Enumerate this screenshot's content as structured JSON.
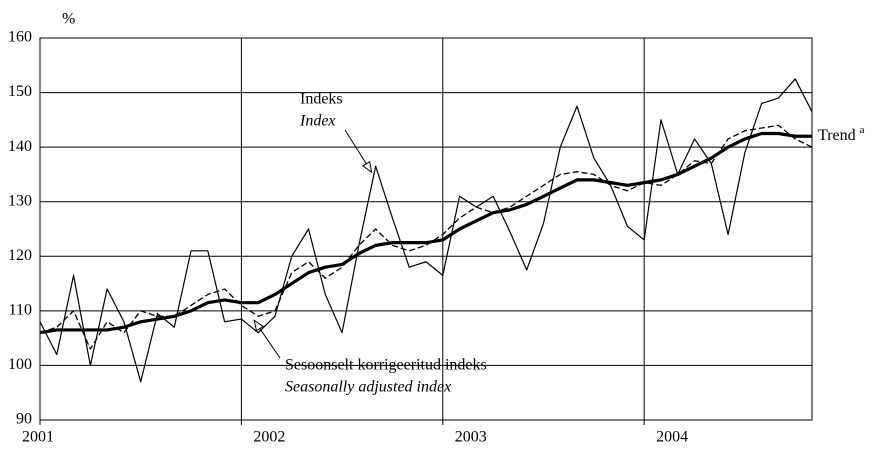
{
  "chart_data": {
    "type": "line",
    "y_unit": "%",
    "categories": [
      "2001",
      null,
      null,
      null,
      null,
      null,
      null,
      null,
      null,
      null,
      null,
      null,
      "2002",
      null,
      null,
      null,
      null,
      null,
      null,
      null,
      null,
      null,
      null,
      null,
      "2003",
      null,
      null,
      null,
      null,
      null,
      null,
      null,
      null,
      null,
      null,
      null,
      "2004",
      null,
      null,
      null,
      null,
      null,
      null,
      null,
      null,
      null,
      null
    ],
    "series": [
      {
        "name": "Indeks",
        "name_en": "Index",
        "color": "#000",
        "style": "thin",
        "values": [
          108,
          102,
          116.5,
          100,
          114,
          108,
          97,
          109.5,
          107,
          121,
          121,
          108,
          108.5,
          106,
          109,
          120,
          125,
          113,
          106,
          122,
          136.5,
          127,
          118,
          119,
          116.5,
          131,
          129,
          131,
          124.5,
          117.5,
          126,
          140,
          147.5,
          138,
          133,
          125.5,
          123,
          145,
          135,
          141.5,
          137,
          124,
          139,
          148,
          149,
          152.5,
          146.5
        ]
      },
      {
        "name": "Sesoonselt korrigeeritud indeks",
        "name_en": "Seasonally adjusted index",
        "color": "#000",
        "style": "dashed",
        "values": [
          106,
          107,
          110,
          103,
          108,
          106,
          110,
          109,
          109,
          111,
          113,
          114,
          111,
          109,
          110,
          117,
          119,
          116,
          118,
          122,
          125,
          122,
          121,
          122,
          124,
          127,
          129,
          128,
          129,
          131,
          133,
          135,
          135.5,
          135,
          133,
          132,
          133.5,
          133,
          135,
          137.5,
          137,
          141.5,
          143,
          143.5,
          144,
          141.5,
          140
        ]
      },
      {
        "name": "Trend",
        "name_note": "a",
        "color": "#000",
        "style": "thick",
        "values": [
          106,
          106.5,
          106.5,
          106.5,
          106.5,
          107,
          108,
          108.5,
          109,
          110,
          111.5,
          112,
          111.5,
          111.5,
          113,
          115,
          117,
          118,
          118.5,
          120.5,
          122,
          122.5,
          122.5,
          122.5,
          123,
          125,
          126.5,
          128,
          128.5,
          129.5,
          131,
          132.5,
          134,
          134,
          133.5,
          133,
          133.5,
          134,
          135,
          136.5,
          138,
          140,
          141.5,
          142.5,
          142.5,
          142,
          142
        ]
      }
    ],
    "ylim": [
      90,
      160
    ],
    "yticks": [
      90,
      100,
      110,
      120,
      130,
      140,
      150,
      160
    ],
    "grid": true
  }
}
